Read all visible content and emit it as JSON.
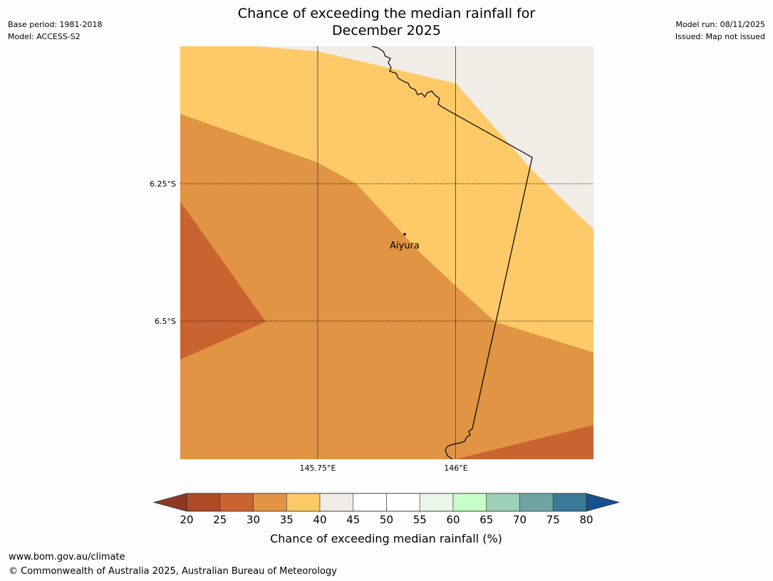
{
  "header": {
    "title_line1": "Chance of exceeding the median rainfall for",
    "title_line2": "December 2025",
    "base_period": "Base period: 1981-2018",
    "model": "Model: ACCESS-S2",
    "model_run": "Model run: 08/11/2025",
    "issued": "Issued: Map not issued"
  },
  "map": {
    "longitude_labels": [
      "145.75°E",
      "146°E"
    ],
    "latitude_labels": [
      "6.25°S",
      "6.5°S"
    ],
    "place": {
      "name": "Aiyura"
    },
    "zones": [
      {
        "range": "20-25",
        "color": "#ae4a26"
      },
      {
        "range": "25-30",
        "color": "#c96330"
      },
      {
        "range": "30-35",
        "color": "#e09444"
      },
      {
        "range": "35-40",
        "color": "#fdca67"
      },
      {
        "range": "40-45",
        "color": "#f1ece5"
      }
    ]
  },
  "colorbar": {
    "label": "Chance of exceeding median rainfall (%)",
    "ticks": [
      "20",
      "25",
      "30",
      "35",
      "40",
      "45",
      "50",
      "55",
      "60",
      "65",
      "70",
      "75",
      "80"
    ],
    "under_color": "#8f3722",
    "over_color": "#17528e",
    "colors": [
      "#ae4a26",
      "#c96330",
      "#e09444",
      "#fdca67",
      "#f1ece5",
      "#ffffff",
      "#ffffff",
      "#eaf6e8",
      "#c8fdc8",
      "#9ecfb7",
      "#6ea5a4",
      "#3d7999"
    ]
  },
  "footer": {
    "url": "www.bom.gov.au/climate",
    "copyright": "© Commonwealth of Australia 2025, Australian Bureau of Meteorology"
  }
}
